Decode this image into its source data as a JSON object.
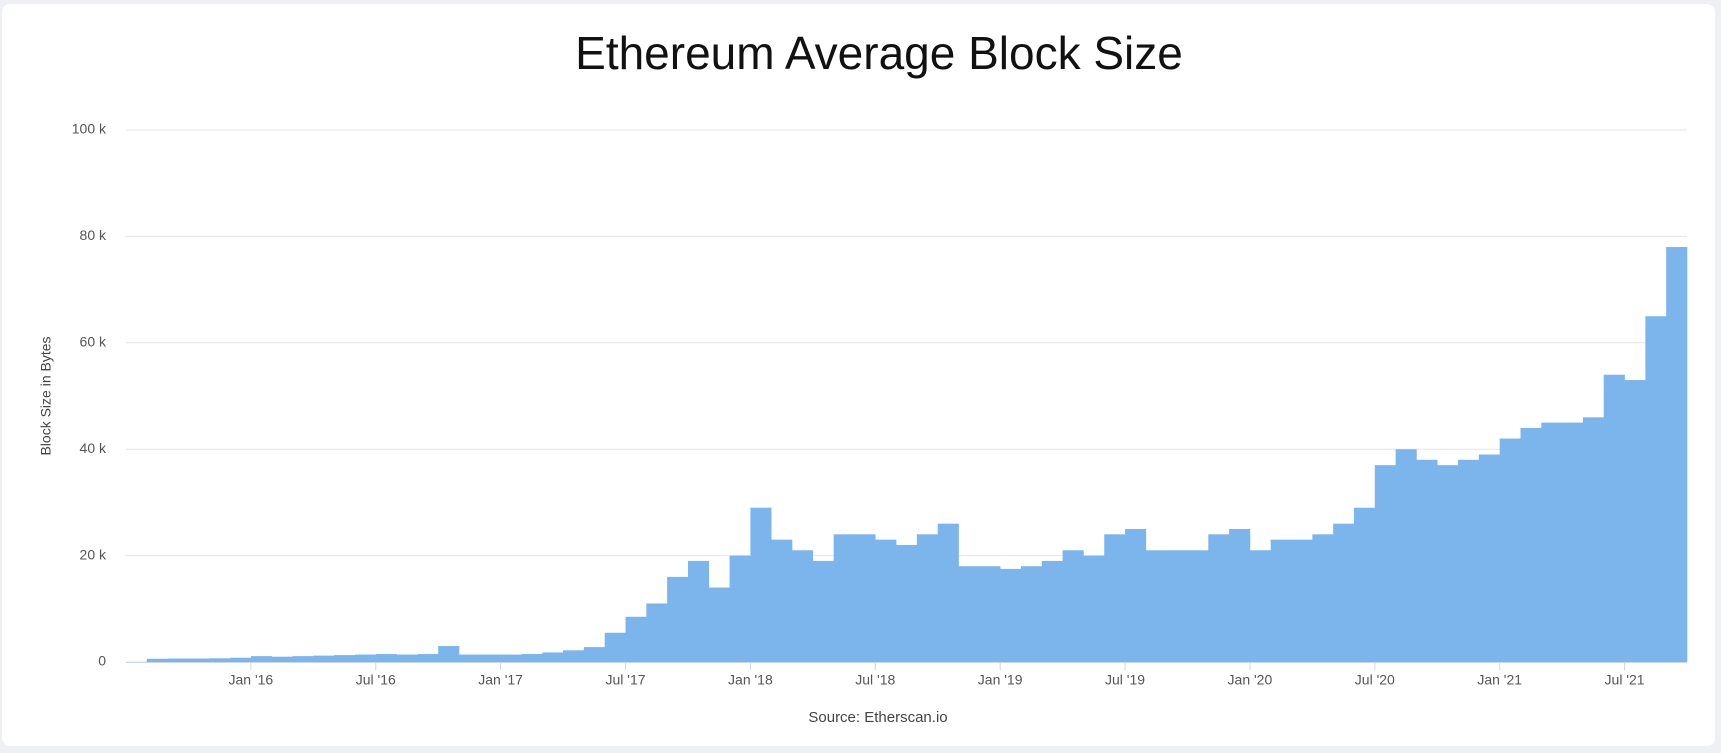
{
  "chart_data": {
    "type": "bar",
    "title": "Ethereum Average Block Size",
    "y_label": "Block Size in Bytes",
    "credit": "Source: Etherscan.io",
    "color": "#7cb5ec",
    "grid": true,
    "x": [
      "2015-08",
      "2015-09",
      "2015-10",
      "2015-11",
      "2015-12",
      "2016-01",
      "2016-02",
      "2016-03",
      "2016-04",
      "2016-05",
      "2016-06",
      "2016-07",
      "2016-08",
      "2016-09",
      "2016-10",
      "2016-11",
      "2016-12",
      "2017-01",
      "2017-02",
      "2017-03",
      "2017-04",
      "2017-05",
      "2017-06",
      "2017-07",
      "2017-08",
      "2017-09",
      "2017-10",
      "2017-11",
      "2017-12",
      "2018-01",
      "2018-02",
      "2018-03",
      "2018-04",
      "2018-05",
      "2018-06",
      "2018-07",
      "2018-08",
      "2018-09",
      "2018-10",
      "2018-11",
      "2018-12",
      "2019-01",
      "2019-02",
      "2019-03",
      "2019-04",
      "2019-05",
      "2019-06",
      "2019-07",
      "2019-08",
      "2019-09",
      "2019-10",
      "2019-11",
      "2019-12",
      "2020-01",
      "2020-02",
      "2020-03",
      "2020-04",
      "2020-05",
      "2020-06",
      "2020-07",
      "2020-08",
      "2020-09",
      "2020-10",
      "2020-11",
      "2020-12",
      "2021-01",
      "2021-02",
      "2021-03",
      "2021-04",
      "2021-05",
      "2021-06",
      "2021-07",
      "2021-08",
      "2021-09"
    ],
    "values": [
      600,
      650,
      650,
      700,
      800,
      1100,
      1000,
      1100,
      1200,
      1300,
      1400,
      1500,
      1400,
      1500,
      3000,
      1400,
      1400,
      1400,
      1500,
      1800,
      2200,
      2800,
      5500,
      8500,
      11000,
      16000,
      19000,
      14000,
      20000,
      29000,
      23000,
      21000,
      19000,
      24000,
      24000,
      23000,
      22000,
      24000,
      26000,
      18000,
      18000,
      17500,
      18000,
      19000,
      21000,
      20000,
      24000,
      25000,
      21000,
      21000,
      21000,
      24000,
      25000,
      21000,
      23000,
      23000,
      24000,
      26000,
      29000,
      37000,
      40000,
      38000,
      37000,
      38000,
      39000,
      42000,
      44000,
      45000,
      45000,
      46000,
      54000,
      53000,
      65000,
      78000
    ],
    "xlim": [
      "2015-07",
      "2021-10"
    ],
    "xticks": [
      {
        "value": "2016-01",
        "label": "Jan '16"
      },
      {
        "value": "2016-07",
        "label": "Jul '16"
      },
      {
        "value": "2017-01",
        "label": "Jan '17"
      },
      {
        "value": "2017-07",
        "label": "Jul '17"
      },
      {
        "value": "2018-01",
        "label": "Jan '18"
      },
      {
        "value": "2018-07",
        "label": "Jul '18"
      },
      {
        "value": "2019-01",
        "label": "Jan '19"
      },
      {
        "value": "2019-07",
        "label": "Jul '19"
      },
      {
        "value": "2020-01",
        "label": "Jan '20"
      },
      {
        "value": "2020-07",
        "label": "Jul '20"
      },
      {
        "value": "2021-01",
        "label": "Jan '21"
      },
      {
        "value": "2021-07",
        "label": "Jul '21"
      }
    ],
    "ylim": [
      0,
      100000
    ],
    "yticks": [
      0,
      {
        "value": 20000,
        "label": "20 k"
      },
      {
        "value": 40000,
        "label": "40 k"
      },
      {
        "value": 60000,
        "label": "60 k"
      },
      {
        "value": 80000,
        "label": "80 k"
      },
      {
        "value": 100000,
        "label": "100 k"
      }
    ]
  }
}
